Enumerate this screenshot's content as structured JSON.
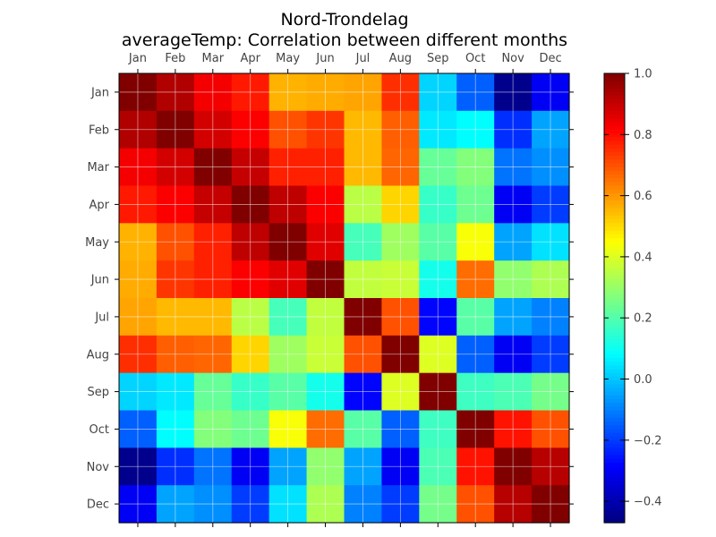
{
  "chart_data": {
    "type": "heatmap",
    "title": "Nord-Trondelag",
    "subtitle": "averageTemp: Correlation between different months",
    "categories": [
      "Jan",
      "Feb",
      "Mar",
      "Apr",
      "May",
      "Jun",
      "Jul",
      "Aug",
      "Sep",
      "Oct",
      "Nov",
      "Dec"
    ],
    "values": [
      [
        1.0,
        0.93,
        0.83,
        0.78,
        0.56,
        0.57,
        0.58,
        0.75,
        0.02,
        -0.15,
        -0.45,
        -0.3
      ],
      [
        0.93,
        1.0,
        0.88,
        0.82,
        0.7,
        0.74,
        0.55,
        0.68,
        0.05,
        0.08,
        -0.22,
        -0.05
      ],
      [
        0.83,
        0.88,
        1.0,
        0.9,
        0.77,
        0.77,
        0.55,
        0.67,
        0.23,
        0.27,
        -0.12,
        -0.08
      ],
      [
        0.78,
        0.82,
        0.9,
        1.0,
        0.91,
        0.82,
        0.35,
        0.51,
        0.16,
        0.24,
        -0.3,
        -0.2
      ],
      [
        0.56,
        0.7,
        0.77,
        0.91,
        1.0,
        0.86,
        0.18,
        0.31,
        0.21,
        0.44,
        -0.05,
        0.04
      ],
      [
        0.57,
        0.74,
        0.77,
        0.82,
        0.86,
        1.0,
        0.36,
        0.37,
        0.11,
        0.66,
        0.29,
        0.33
      ],
      [
        0.58,
        0.55,
        0.55,
        0.35,
        0.18,
        0.36,
        1.0,
        0.7,
        -0.28,
        0.21,
        -0.05,
        -0.1
      ],
      [
        0.75,
        0.68,
        0.67,
        0.51,
        0.31,
        0.37,
        0.7,
        1.0,
        0.4,
        -0.15,
        -0.3,
        -0.2
      ],
      [
        0.02,
        0.05,
        0.23,
        0.16,
        0.21,
        0.11,
        -0.28,
        0.4,
        1.0,
        0.17,
        0.19,
        0.25
      ],
      [
        -0.15,
        0.08,
        0.27,
        0.24,
        0.44,
        0.66,
        0.21,
        -0.15,
        0.17,
        1.0,
        0.79,
        0.7
      ],
      [
        -0.45,
        -0.22,
        -0.12,
        -0.3,
        -0.05,
        0.29,
        -0.05,
        -0.3,
        0.19,
        0.79,
        1.0,
        0.92
      ],
      [
        -0.3,
        -0.05,
        -0.08,
        -0.2,
        0.04,
        0.33,
        -0.1,
        -0.2,
        0.25,
        0.7,
        0.92,
        1.0
      ]
    ],
    "vmin": -0.47,
    "vmax": 1.0,
    "colormap": "jet",
    "colorbar_ticks": [
      1.0,
      0.8,
      0.6,
      0.4,
      0.2,
      0.0,
      -0.2,
      -0.4
    ],
    "colorbar_tick_labels": [
      "1.0",
      "0.8",
      "0.6",
      "0.4",
      "0.2",
      "0.0",
      "−0.2",
      "−0.4"
    ],
    "grid": true,
    "x_axis_position": "top",
    "colorbar_position": "right"
  }
}
